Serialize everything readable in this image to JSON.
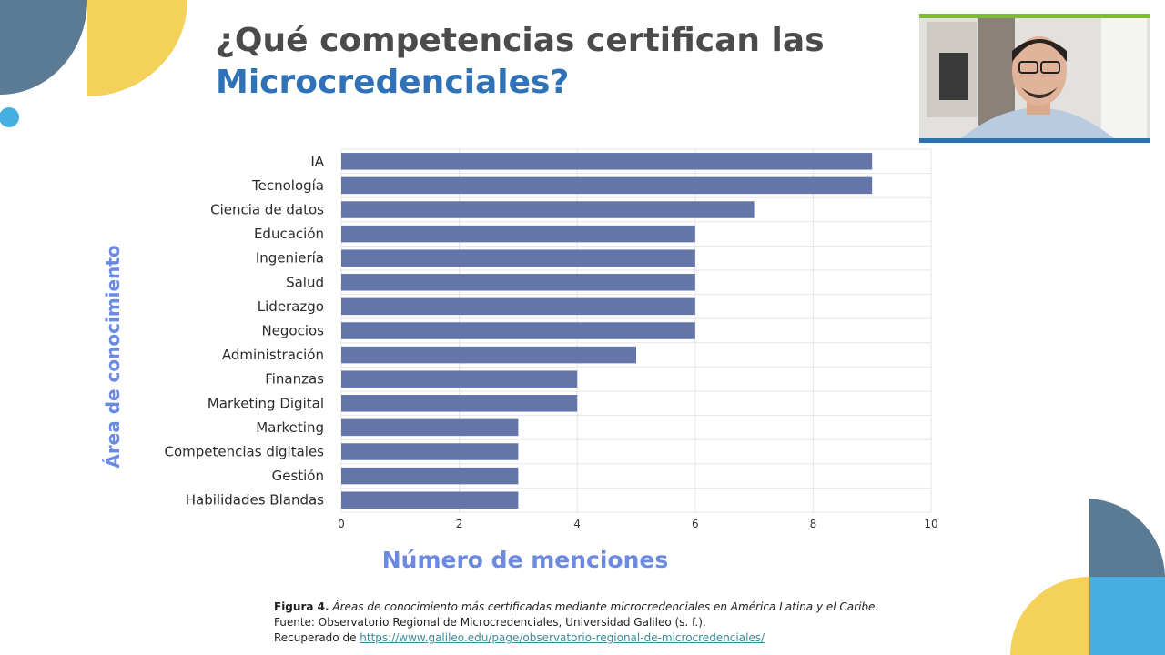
{
  "slide": {
    "title_line1": "¿Qué competencias certifican las",
    "title_line2": "Microcredenciales?"
  },
  "caption": {
    "figure_label": "Figura 4.",
    "figure_text": "Áreas de conocimiento más certificadas mediante microcredenciales en América Latina y el Caribe.",
    "source": "Fuente: Observatorio Regional de Microcredenciales, Universidad Galileo (s. f.).",
    "retrieved_prefix": "Recuperado de",
    "url": "https://www.galileo.edu/page/observatorio-regional-de-microcredenciales/"
  },
  "colors": {
    "bar": "#6475a9",
    "title_dark": "#4b4b4b",
    "title_blue": "#2f72b8",
    "axis_title": "#6c8be0",
    "deco_slate": "#5b7a94",
    "deco_yellow": "#f3d15a",
    "deco_cyan": "#46aee0",
    "webcam_top": "#7dbb3a",
    "webcam_bottom": "#2e6fb0"
  },
  "chart_data": {
    "type": "bar",
    "orientation": "horizontal",
    "categories": [
      "IA",
      "Tecnología",
      "Ciencia de datos",
      "Educación",
      "Ingeniería",
      "Salud",
      "Liderazgo",
      "Negocios",
      "Administración",
      "Finanzas",
      "Marketing Digital",
      "Marketing",
      "Competencias digitales",
      "Gestión",
      "Habilidades Blandas"
    ],
    "values": [
      9,
      9,
      7,
      6,
      6,
      6,
      6,
      6,
      5,
      4,
      4,
      3,
      3,
      3,
      3
    ],
    "xlabel": "Número de menciones",
    "ylabel": "Área de conocimiento",
    "xlim": [
      0,
      10
    ],
    "xticks": [
      0,
      2,
      4,
      6,
      8,
      10
    ],
    "grid": true
  },
  "webcam": {
    "icon": "presenter-video-icon"
  }
}
